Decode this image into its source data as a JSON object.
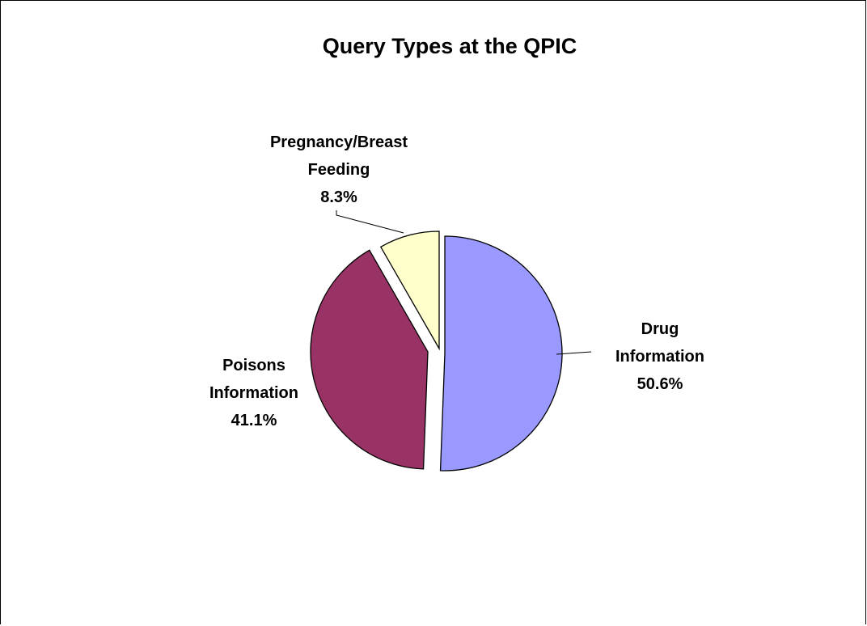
{
  "chart_data": {
    "type": "pie",
    "title": "Query Types at the QPIC",
    "slices": [
      {
        "label_lines": [
          "Drug",
          "Information"
        ],
        "value_label": "50.6%",
        "value": 50.6,
        "color": "#9999ff"
      },
      {
        "label_lines": [
          "Poisons",
          "Information"
        ],
        "value_label": "41.1%",
        "value": 41.1,
        "color": "#993366"
      },
      {
        "label_lines": [
          "Pregnancy/Breast",
          "Feeding"
        ],
        "value_label": "8.3%",
        "value": 8.3,
        "color": "#ffffcc"
      }
    ],
    "legend": "none",
    "exploded": true
  }
}
